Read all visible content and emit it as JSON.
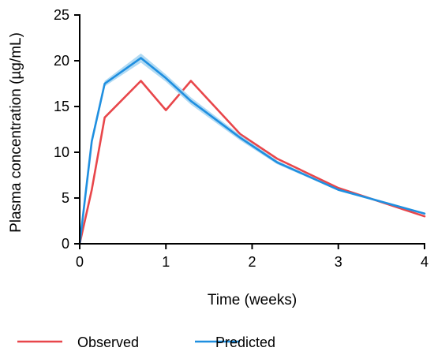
{
  "chart_data": {
    "type": "line",
    "xlabel": "Time (weeks)",
    "ylabel": "Plasma concentration (µg/mL)",
    "xlim": [
      0,
      4
    ],
    "ylim": [
      0,
      25
    ],
    "xticks": [
      0,
      1,
      2,
      3,
      4
    ],
    "yticks": [
      0,
      5,
      10,
      15,
      20,
      25
    ],
    "grid": false,
    "legend": "bottom",
    "series": [
      {
        "name": "Observed",
        "color": "#e8464a",
        "x": [
          0,
          0.14,
          0.29,
          0.71,
          1.0,
          1.29,
          1.86,
          2.29,
          3.0,
          4.0
        ],
        "y": [
          0,
          5.9,
          13.8,
          17.8,
          14.6,
          17.8,
          12.0,
          9.3,
          6.1,
          3.0
        ]
      },
      {
        "name": "Predicted",
        "color": "#1f8fe0",
        "band_color": "#a8d6f2",
        "x": [
          0,
          0.14,
          0.29,
          0.71,
          1.0,
          1.29,
          1.86,
          2.29,
          3.0,
          4.0
        ],
        "y": [
          0,
          11.2,
          17.5,
          20.3,
          18.1,
          15.6,
          11.6,
          8.9,
          5.9,
          3.3
        ],
        "lower": [
          0,
          10.9,
          17.2,
          19.8,
          17.7,
          15.2,
          11.3,
          8.7,
          5.8,
          3.2
        ],
        "upper": [
          0,
          11.5,
          17.8,
          20.8,
          18.5,
          16.0,
          11.9,
          9.1,
          6.0,
          3.4
        ]
      }
    ]
  }
}
